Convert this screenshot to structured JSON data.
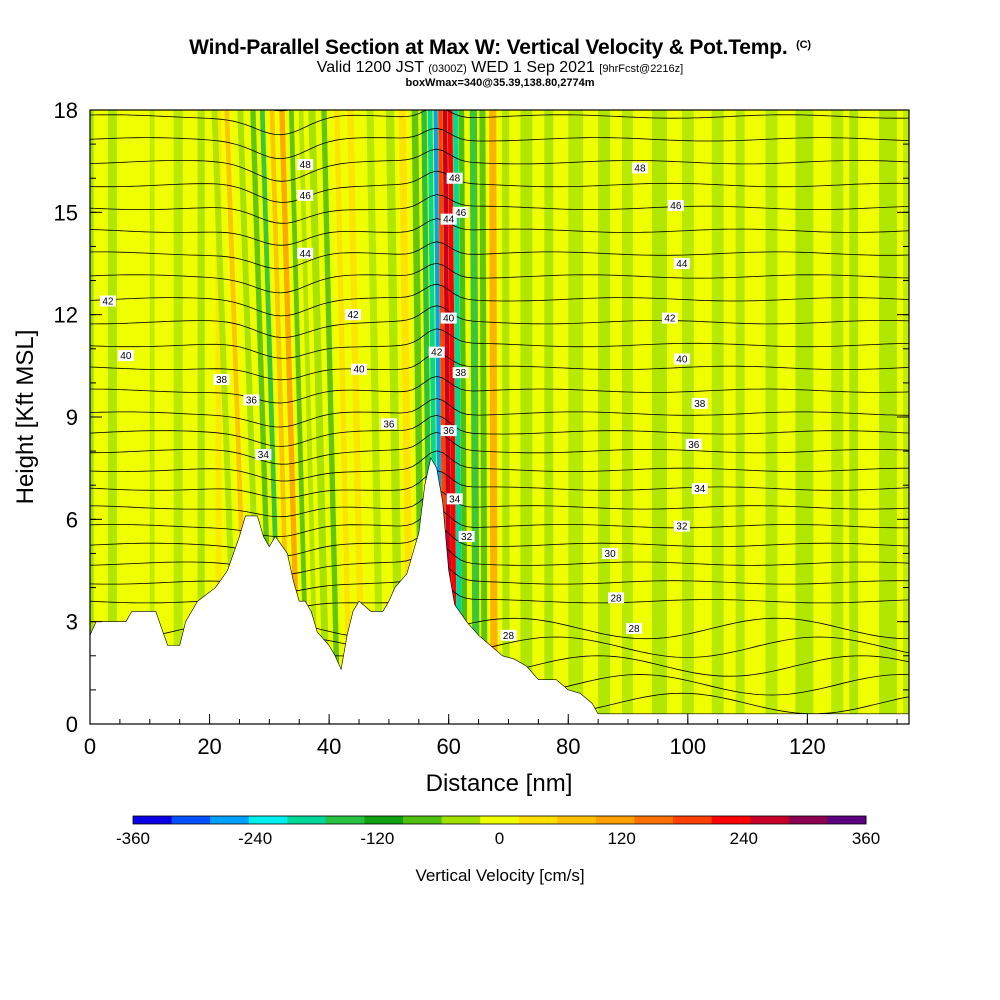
{
  "header": {
    "title": "Wind-Parallel Section at Max W: Vertical Velocity & Pot.Temp.",
    "title_unit": "(C)",
    "valid_main": "Valid 1200 JST",
    "valid_utc": "(0300Z)",
    "valid_date": "WED 1 Sep 2021",
    "forecast": "[9hrFcst@2216z]",
    "box_info": "boxWmax=340@35.39,138.80,2774m"
  },
  "chart_data": {
    "type": "heatmap",
    "xlabel": "Distance [nm]",
    "ylabel": "Height [Kft MSL]",
    "xlim": [
      0,
      137
    ],
    "ylim": [
      0,
      18
    ],
    "x_ticks": [
      0,
      20,
      40,
      60,
      80,
      100,
      120
    ],
    "y_ticks": [
      0,
      3,
      6,
      9,
      12,
      15,
      18
    ],
    "colorbar": {
      "label": "Vertical Velocity [cm/s]",
      "ticks": [
        -360,
        -240,
        -120,
        0,
        120,
        240,
        360
      ],
      "colors": [
        "#0a00e6",
        "#0050ff",
        "#00a0ff",
        "#00f0f0",
        "#00d89a",
        "#28c040",
        "#10a010",
        "#50c010",
        "#a0e000",
        "#f0ff00",
        "#ffe000",
        "#ffc000",
        "#ffa000",
        "#ff7000",
        "#ff4000",
        "#ff0000",
        "#c80028",
        "#8c0050",
        "#5a0080"
      ]
    },
    "terrain": [
      [
        0,
        2.6
      ],
      [
        1,
        3
      ],
      [
        6,
        3
      ],
      [
        7,
        3.3
      ],
      [
        11,
        3.3
      ],
      [
        12,
        2.8
      ],
      [
        13,
        2.3
      ],
      [
        15,
        2.3
      ],
      [
        16,
        3
      ],
      [
        17,
        3.3
      ],
      [
        18,
        3.6
      ],
      [
        21,
        4
      ],
      [
        23,
        4.5
      ],
      [
        24,
        5
      ],
      [
        25,
        5.5
      ],
      [
        26,
        6.1
      ],
      [
        28,
        6.1
      ],
      [
        29,
        5.5
      ],
      [
        30,
        5.2
      ],
      [
        31,
        5.5
      ],
      [
        33,
        5
      ],
      [
        34,
        4.2
      ],
      [
        35,
        3.6
      ],
      [
        36,
        3.6
      ],
      [
        37,
        3.3
      ],
      [
        38,
        2.7
      ],
      [
        40,
        2.3
      ],
      [
        41,
        2
      ],
      [
        42,
        1.6
      ],
      [
        43,
        2.6
      ],
      [
        44,
        3.3
      ],
      [
        45,
        3.6
      ],
      [
        47,
        3.3
      ],
      [
        49,
        3.3
      ],
      [
        50,
        3.6
      ],
      [
        51,
        4
      ],
      [
        53,
        4.4
      ],
      [
        55,
        5.6
      ],
      [
        56,
        7
      ],
      [
        57,
        7.8
      ],
      [
        58,
        7.5
      ],
      [
        59,
        6.5
      ],
      [
        60,
        4.5
      ],
      [
        61,
        3.5
      ],
      [
        63,
        3
      ],
      [
        65,
        2.6
      ],
      [
        67,
        2.3
      ],
      [
        69,
        2
      ],
      [
        71,
        1.9
      ],
      [
        73,
        1.7
      ],
      [
        75,
        1.3
      ],
      [
        78,
        1.3
      ],
      [
        80,
        1
      ],
      [
        82,
        0.9
      ],
      [
        84,
        0.6
      ],
      [
        85,
        0.3
      ],
      [
        137,
        0.3
      ]
    ],
    "contour_labels": [
      {
        "x": 36,
        "y": 16.4,
        "text": "48"
      },
      {
        "x": 36,
        "y": 15.5,
        "text": "46"
      },
      {
        "x": 36,
        "y": 13.8,
        "text": "44"
      },
      {
        "x": 3,
        "y": 12.4,
        "text": "42"
      },
      {
        "x": 44,
        "y": 12.0,
        "text": "42"
      },
      {
        "x": 6,
        "y": 10.8,
        "text": "40"
      },
      {
        "x": 45,
        "y": 10.4,
        "text": "40"
      },
      {
        "x": 22,
        "y": 10.1,
        "text": "38"
      },
      {
        "x": 27,
        "y": 9.5,
        "text": "36"
      },
      {
        "x": 50,
        "y": 8.8,
        "text": "36"
      },
      {
        "x": 29,
        "y": 7.9,
        "text": "34"
      },
      {
        "x": 61,
        "y": 16.0,
        "text": "48"
      },
      {
        "x": 62,
        "y": 15.0,
        "text": "46"
      },
      {
        "x": 60,
        "y": 14.8,
        "text": "44"
      },
      {
        "x": 60,
        "y": 11.9,
        "text": "40"
      },
      {
        "x": 58,
        "y": 10.9,
        "text": "42"
      },
      {
        "x": 62,
        "y": 10.3,
        "text": "38"
      },
      {
        "x": 60,
        "y": 8.6,
        "text": "36"
      },
      {
        "x": 61,
        "y": 6.6,
        "text": "34"
      },
      {
        "x": 63,
        "y": 5.5,
        "text": "32"
      },
      {
        "x": 92,
        "y": 16.3,
        "text": "48"
      },
      {
        "x": 98,
        "y": 15.2,
        "text": "46"
      },
      {
        "x": 99,
        "y": 13.5,
        "text": "44"
      },
      {
        "x": 97,
        "y": 11.9,
        "text": "42"
      },
      {
        "x": 99,
        "y": 10.7,
        "text": "40"
      },
      {
        "x": 102,
        "y": 9.4,
        "text": "38"
      },
      {
        "x": 101,
        "y": 8.2,
        "text": "36"
      },
      {
        "x": 102,
        "y": 6.9,
        "text": "34"
      },
      {
        "x": 99,
        "y": 5.8,
        "text": "32"
      },
      {
        "x": 87,
        "y": 5.0,
        "text": "30"
      },
      {
        "x": 88,
        "y": 3.7,
        "text": "28"
      },
      {
        "x": 91,
        "y": 2.8,
        "text": "28"
      },
      {
        "x": 70,
        "y": 2.6,
        "text": "28"
      }
    ]
  }
}
